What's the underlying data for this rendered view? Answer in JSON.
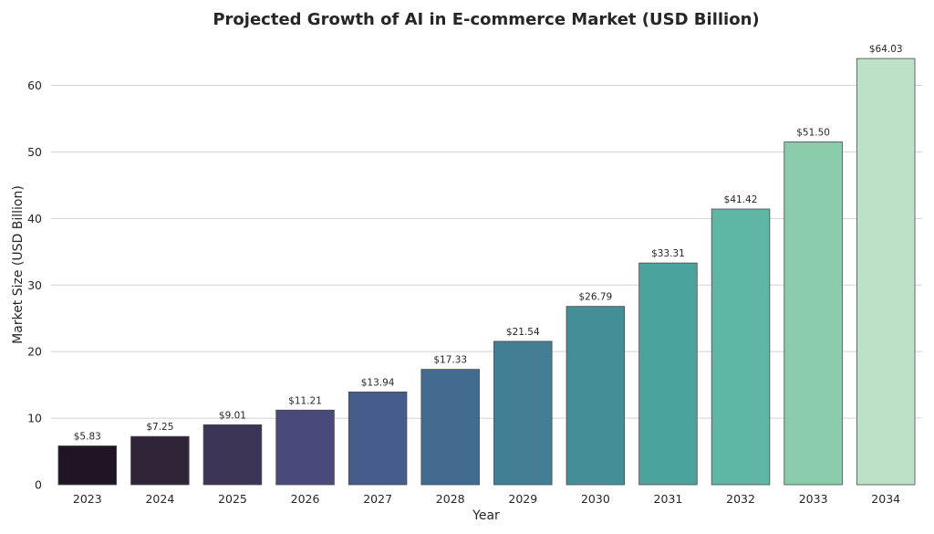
{
  "chart_data": {
    "type": "bar",
    "title": "Projected Growth of AI in E-commerce Market (USD Billion)",
    "xlabel": "Year",
    "ylabel": "Market Size (USD Billion)",
    "categories": [
      "2023",
      "2024",
      "2025",
      "2026",
      "2027",
      "2028",
      "2029",
      "2030",
      "2031",
      "2032",
      "2033",
      "2034"
    ],
    "values": [
      5.83,
      7.25,
      9.01,
      11.21,
      13.94,
      17.33,
      21.54,
      26.79,
      33.31,
      41.42,
      51.5,
      64.03
    ],
    "data_labels": [
      "$5.83",
      "$7.25",
      "$9.01",
      "$11.21",
      "$13.94",
      "$17.33",
      "$21.54",
      "$26.79",
      "$33.31",
      "$41.42",
      "$51.50",
      "$64.03"
    ],
    "colors": [
      "#201623",
      "#302438",
      "#3d3556",
      "#4a497b",
      "#465d8c",
      "#416c8f",
      "#437e95",
      "#438f98",
      "#4aa39e",
      "#5fb6a4",
      "#89cbaa",
      "#bce1c6"
    ],
    "yticks": [
      "0",
      "10",
      "20",
      "30",
      "40",
      "50",
      "60"
    ],
    "ylim": [
      0,
      67.2
    ],
    "grid": "horizontal",
    "legend": "none"
  }
}
